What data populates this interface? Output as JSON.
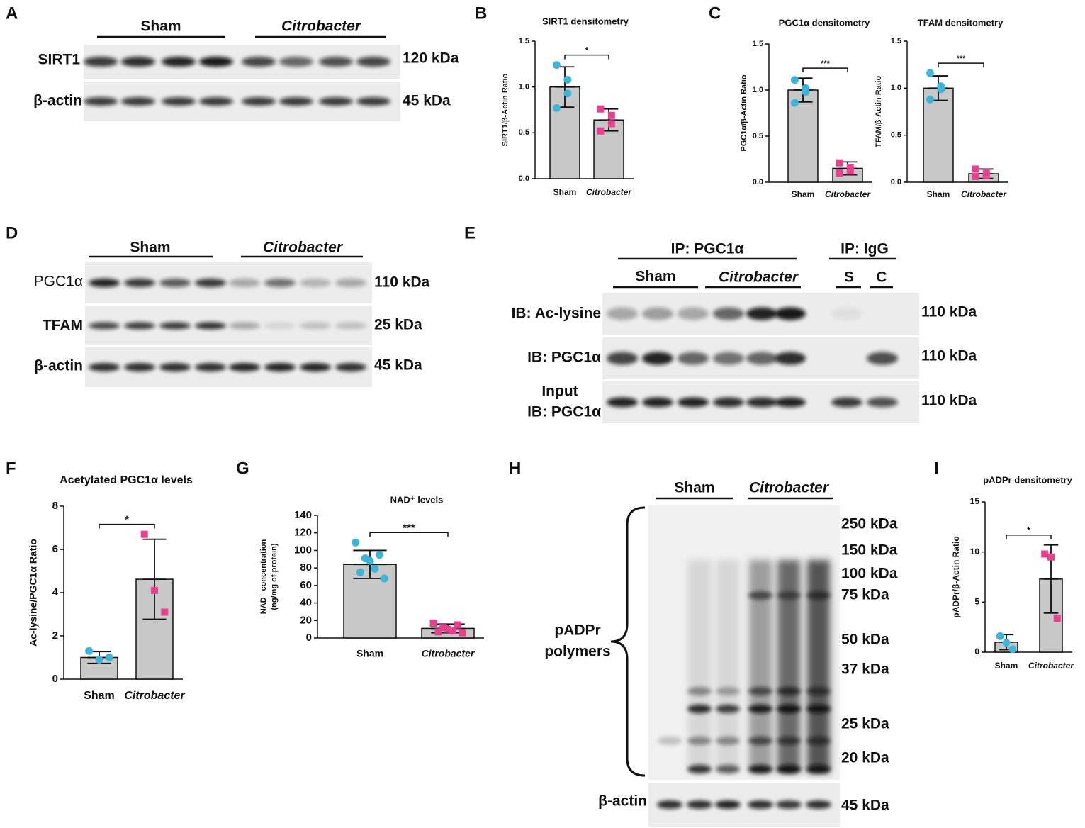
{
  "chart_data": [
    {
      "type": "bar",
      "panel": "B",
      "title": "SIRT1 densitometry",
      "ylabel": [
        "SIRT1/β-Actin Ratio"
      ],
      "categories": [
        "Sham",
        "Citrobacter"
      ],
      "values": [
        1.0,
        0.64
      ],
      "errors": [
        0.22,
        0.12
      ],
      "points": [
        [
          1.24,
          1.08,
          0.93,
          0.77
        ],
        [
          0.76,
          0.69,
          0.6,
          0.52
        ]
      ],
      "color": "#c8c8c8",
      "point_colors": [
        "#3db4d9",
        "#e6408e"
      ],
      "markers": [
        "circle",
        "square"
      ],
      "significance": "*",
      "ylim": [
        0,
        1.5
      ],
      "yticks": [
        {
          "value": 0,
          "label": "0.0"
        },
        0.5,
        {
          "value": 1,
          "label": "1.0"
        },
        1.5
      ]
    },
    {
      "type": "bar",
      "panel": "C",
      "title": "PGC1α densitometry",
      "ylabel": [
        "PGC1α/β-Actin Ratio"
      ],
      "categories": [
        "Sham",
        "Citrobacter"
      ],
      "values": [
        1.0,
        0.15
      ],
      "errors": [
        0.13,
        0.07
      ],
      "points": [
        [
          1.11,
          1.02,
          0.98,
          0.86
        ],
        [
          0.21,
          0.16,
          0.12,
          0.1
        ]
      ],
      "color": "#c8c8c8",
      "point_colors": [
        "#3db4d9",
        "#e6408e"
      ],
      "markers": [
        "circle",
        "square"
      ],
      "significance": "***",
      "ylim": [
        0,
        1.5
      ],
      "yticks": [
        {
          "value": 0,
          "label": "0.0"
        },
        0.5,
        {
          "value": 1,
          "label": "1.0"
        },
        1.5
      ]
    },
    {
      "type": "bar",
      "title": "TFAM densitometry",
      "ylabel": [
        "TFAM/β-Actin Ratio"
      ],
      "categories": [
        "Sham",
        "Citrobacter"
      ],
      "values": [
        1.0,
        0.09
      ],
      "errors": [
        0.13,
        0.05
      ],
      "points": [
        [
          1.16,
          1.02,
          0.99,
          0.88
        ],
        [
          0.14,
          0.1,
          0.07,
          0.06
        ]
      ],
      "color": "#c8c8c8",
      "point_colors": [
        "#3db4d9",
        "#e6408e"
      ],
      "markers": [
        "circle",
        "square"
      ],
      "significance": "***",
      "ylim": [
        0,
        1.5
      ],
      "yticks": [
        {
          "value": 0,
          "label": "0.0"
        },
        0.5,
        {
          "value": 1,
          "label": "1.0"
        },
        1.5
      ]
    },
    {
      "type": "bar",
      "panel": "F",
      "title": "Acetylated PGC1α levels",
      "ylabel": [
        "Ac-lysine/PGC1α Ratio"
      ],
      "categories": [
        "Sham",
        "Citrobacter"
      ],
      "values": [
        1.0,
        4.62
      ],
      "errors": [
        0.27,
        1.85
      ],
      "points": [
        [
          1.3,
          0.9,
          1.0
        ],
        [
          6.7,
          4.1,
          3.1
        ]
      ],
      "color": "#c8c8c8",
      "point_colors": [
        "#3db4d9",
        "#e6408e"
      ],
      "markers": [
        "circle",
        "square"
      ],
      "significance": "*",
      "ylim": [
        0,
        8
      ],
      "yticks": [
        0,
        2,
        4,
        6,
        8
      ]
    },
    {
      "type": "bar",
      "panel": "G",
      "title": "NAD⁺ levels",
      "ylabel": [
        "NAD⁺ concentration",
        "(ng/mg of protein)"
      ],
      "categories": [
        "Sham",
        "Citrobacter"
      ],
      "values": [
        84,
        11
      ],
      "errors": [
        16,
        5
      ],
      "points": [
        [
          109,
          95,
          91,
          88,
          79,
          75,
          68
        ],
        [
          17,
          15,
          12,
          10,
          8,
          7,
          6
        ]
      ],
      "color": "#c8c8c8",
      "point_colors": [
        "#3db4d9",
        "#e6408e"
      ],
      "markers": [
        "circle",
        "square"
      ],
      "significance": "***",
      "ylim": [
        0,
        140
      ],
      "yticks": [
        0,
        20,
        40,
        60,
        80,
        100,
        120,
        140
      ]
    },
    {
      "type": "bar",
      "panel": "I",
      "title": "pADPr densitometry",
      "ylabel": [
        "pADPr/β-Actin Ratio"
      ],
      "categories": [
        "Sham",
        "Citrobacter"
      ],
      "values": [
        1.0,
        7.3
      ],
      "errors": [
        0.75,
        3.4
      ],
      "points": [
        [
          1.6,
          0.95,
          0.3
        ],
        [
          9.8,
          9.5,
          3.4
        ]
      ],
      "color": "#c8c8c8",
      "point_colors": [
        "#3db4d9",
        "#e6408e"
      ],
      "markers": [
        "circle",
        "square"
      ],
      "significance": "*",
      "ylim": [
        0,
        15
      ],
      "yticks": [
        0,
        5,
        10,
        15
      ]
    }
  ],
  "blots": [
    {
      "panel": "A",
      "groups": [
        "Sham",
        "Citrobacter"
      ],
      "rows": [
        "SIRT1",
        "β-actin"
      ],
      "sizes": [
        "120 kDa",
        "45 kDa"
      ]
    },
    {
      "panel": "D",
      "groups": [
        "Sham",
        "Citrobacter"
      ],
      "rows": [
        "PGC1α",
        "TFAM",
        "β-actin"
      ],
      "sizes": [
        "110 kDa",
        "25 kDa",
        "45 kDa"
      ]
    },
    {
      "panel": "E",
      "ip_groups": [
        "IP: PGC1α",
        "IP: IgG"
      ],
      "groups": [
        "Sham",
        "Citrobacter",
        "S",
        "C"
      ],
      "rows": [
        "IB: Ac-lysine",
        "IB: PGC1α",
        "Input",
        "IB: PGC1α"
      ],
      "sizes": [
        "110 kDa",
        "110 kDa",
        "110 kDa"
      ]
    },
    {
      "panel": "H",
      "groups": [
        "Sham",
        "Citrobacter"
      ],
      "bracket_label": [
        "pADPr",
        "polymers"
      ],
      "rows": [
        "β-actin"
      ],
      "sizes": [
        "250 kDa",
        "150 kDa",
        "100 kDa",
        "75 kDa",
        "50 kDa",
        "37 kDa",
        "25 kDa",
        "20 kDa",
        "45 kDa"
      ]
    }
  ]
}
